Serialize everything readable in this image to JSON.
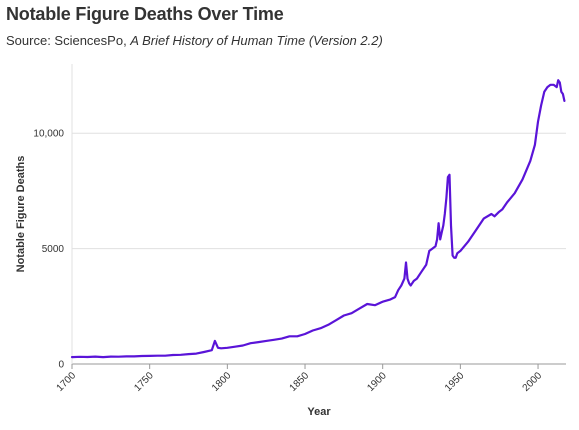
{
  "header": {
    "title": "Notable Figure Deaths Over Time",
    "subtitle_prefix": "Source: SciencesPo, ",
    "subtitle_italic": "A Brief History of Human Time (Version 2.2)"
  },
  "chart_data": {
    "type": "line",
    "title": "Notable Figure Deaths Over Time",
    "subtitle": "Source: SciencesPo, A Brief History of Human Time (Version 2.2)",
    "xlabel": "Year",
    "ylabel": "Notable Figure Deaths",
    "xlim": [
      1700,
      2018
    ],
    "ylim": [
      0,
      13000
    ],
    "x_ticks": [
      1700,
      1750,
      1800,
      1850,
      1900,
      1950,
      2000
    ],
    "x_tick_labels": [
      "1700",
      "1750",
      "1800",
      "1850",
      "1900",
      "1950",
      "2000"
    ],
    "y_ticks": [
      0,
      5000,
      10000
    ],
    "y_tick_labels": [
      "0",
      "5000",
      "10,000"
    ],
    "grid": "horizontal",
    "line_color": "#5a14d8",
    "series": [
      {
        "x": [
          1700,
          1705,
          1710,
          1715,
          1720,
          1725,
          1730,
          1735,
          1740,
          1745,
          1750,
          1755,
          1760,
          1765,
          1770,
          1775,
          1780,
          1785,
          1790,
          1792,
          1794,
          1796,
          1800,
          1805,
          1810,
          1815,
          1820,
          1825,
          1830,
          1835,
          1840,
          1845,
          1850,
          1855,
          1860,
          1865,
          1870,
          1875,
          1880,
          1885,
          1890,
          1895,
          1900,
          1905,
          1908,
          1910,
          1912,
          1914,
          1915,
          1916,
          1917,
          1918,
          1919,
          1920,
          1922,
          1925,
          1928,
          1930,
          1932,
          1934,
          1935,
          1936,
          1937,
          1938,
          1939,
          1940,
          1941,
          1942,
          1943,
          1944,
          1945,
          1946,
          1947,
          1948,
          1950,
          1955,
          1960,
          1965,
          1970,
          1972,
          1975,
          1977,
          1980,
          1985,
          1990,
          1995,
          1998,
          2000,
          2002,
          2004,
          2006,
          2008,
          2010,
          2012,
          2013,
          2014,
          2015,
          2016,
          2017
        ],
        "y": [
          300,
          310,
          305,
          320,
          300,
          320,
          315,
          330,
          330,
          345,
          350,
          360,
          360,
          390,
          400,
          430,
          450,
          520,
          600,
          1000,
          700,
          680,
          700,
          750,
          800,
          900,
          950,
          1000,
          1050,
          1100,
          1200,
          1200,
          1300,
          1450,
          1550,
          1700,
          1900,
          2100,
          2200,
          2400,
          2600,
          2550,
          2700,
          2800,
          2900,
          3200,
          3400,
          3700,
          4400,
          3700,
          3500,
          3400,
          3500,
          3600,
          3700,
          4000,
          4300,
          4900,
          5000,
          5100,
          5400,
          6100,
          5400,
          5700,
          6000,
          6500,
          7200,
          8100,
          8200,
          6000,
          4700,
          4600,
          4600,
          4800,
          4900,
          5300,
          5800,
          6300,
          6500,
          6400,
          6600,
          6700,
          7000,
          7400,
          8000,
          8800,
          9500,
          10500,
          11200,
          11800,
          12000,
          12100,
          12100,
          12000,
          12300,
          12200,
          11800,
          11700,
          11400
        ]
      }
    ]
  }
}
